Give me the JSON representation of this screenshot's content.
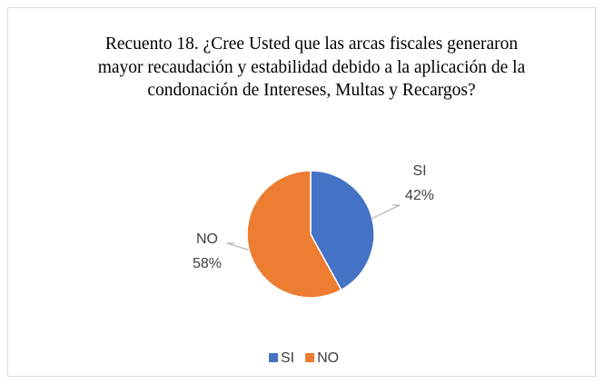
{
  "chart_data": {
    "type": "pie",
    "title": "Recuento 18. ¿Cree Usted que las arcas fiscales generaron mayor recaudación y estabilidad debido a la aplicación de la condonación de Intereses, Multas y Recargos?",
    "categories": [
      "SI",
      "NO"
    ],
    "values": [
      42,
      58
    ],
    "value_labels": [
      "42%",
      "58%"
    ],
    "colors": [
      "#4472c4",
      "#ed7d31"
    ],
    "legend": "bottom"
  }
}
